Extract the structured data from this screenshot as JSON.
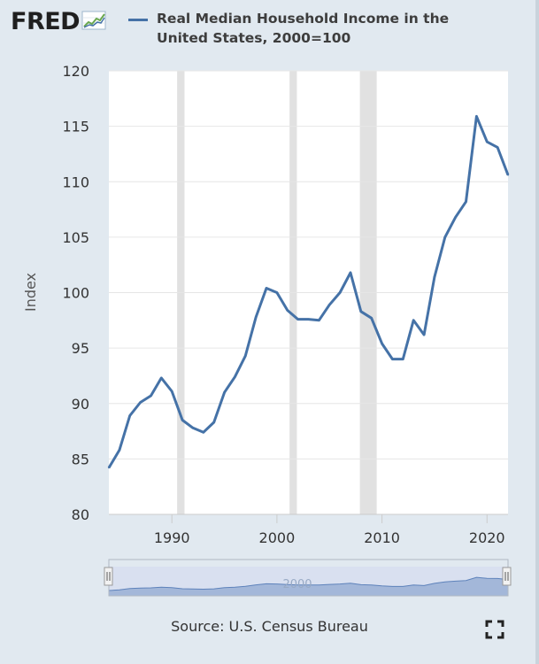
{
  "brand": {
    "logo_text": "FRED",
    "logo_icon": "line-chart-icon"
  },
  "legend": {
    "label": "Real Median Household Income in the United States, 2000=100",
    "color": "#4572a7"
  },
  "source": "Source: U.S. Census Bureau",
  "fullscreen_icon": "fullscreen-icon",
  "colors": {
    "line": "#4572a7",
    "recession": "#e1e1e1",
    "background": "#e1e9f0",
    "plot": "#ffffff",
    "navigator_fill": "#b7c9e0",
    "navigator_line": "#5b82b8"
  },
  "navigator": {
    "label": "2000"
  },
  "chart_data": {
    "type": "line",
    "ylabel": "Index",
    "ylim": [
      80,
      120
    ],
    "yticks": [
      80,
      85,
      90,
      95,
      100,
      105,
      110,
      115,
      120
    ],
    "xlim": [
      1984,
      2022
    ],
    "xticks": [
      1990,
      2000,
      2010,
      2020
    ],
    "grid": true,
    "legend_position": "top",
    "recessions": [
      [
        1990.5,
        1991.2
      ],
      [
        2001.2,
        2001.9
      ],
      [
        2007.9,
        2009.5
      ]
    ],
    "series": [
      {
        "name": "Real Median Household Income in the United States, 2000=100",
        "x": [
          1984,
          1985,
          1986,
          1987,
          1988,
          1989,
          1990,
          1991,
          1992,
          1993,
          1994,
          1995,
          1996,
          1997,
          1998,
          1999,
          2000,
          2001,
          2002,
          2003,
          2004,
          2005,
          2006,
          2007,
          2008,
          2009,
          2010,
          2011,
          2012,
          2013,
          2014,
          2015,
          2016,
          2017,
          2018,
          2019,
          2020,
          2021,
          2022
        ],
        "values": [
          84.2,
          85.8,
          88.9,
          90.1,
          90.7,
          92.3,
          91.1,
          88.5,
          87.8,
          87.4,
          88.3,
          91.0,
          92.4,
          94.3,
          97.8,
          100.4,
          100.0,
          98.4,
          97.6,
          97.6,
          97.5,
          98.9,
          100.0,
          101.8,
          98.3,
          97.7,
          95.4,
          94.0,
          94.0,
          97.5,
          96.2,
          101.4,
          105.0,
          106.8,
          108.2,
          115.9,
          113.6,
          113.1,
          110.6
        ]
      }
    ]
  }
}
